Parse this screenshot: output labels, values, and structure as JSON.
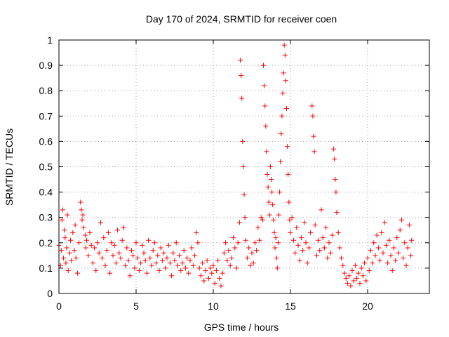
{
  "chart_data": {
    "type": "scatter",
    "title": "Day 170 of 2024, SRMTID for receiver coen",
    "xlabel": "GPS time / hours",
    "ylabel": "SRMTID / TECUs",
    "xlim": [
      0,
      24
    ],
    "ylim": [
      0,
      1
    ],
    "xticks": [
      0,
      5,
      10,
      15,
      20
    ],
    "yticks": [
      0,
      0.1,
      0.2,
      0.3,
      0.4,
      0.5,
      0.6,
      0.7,
      0.8,
      0.9,
      1
    ],
    "xtick_labels": [
      "0",
      "5",
      "10",
      "15",
      "20"
    ],
    "ytick_labels": [
      "0",
      "0.1",
      "0.2",
      "0.3",
      "0.4",
      "0.5",
      "0.6",
      "0.7",
      "0.8",
      "0.9",
      "1"
    ],
    "grid": true,
    "marker": "+",
    "color": "#ff0000",
    "series": [
      {
        "name": "SRMTID",
        "points": [
          [
            0.0,
            0.19
          ],
          [
            0.1,
            0.11
          ],
          [
            0.15,
            0.17
          ],
          [
            0.2,
            0.29
          ],
          [
            0.25,
            0.33
          ],
          [
            0.3,
            0.14
          ],
          [
            0.35,
            0.25
          ],
          [
            0.4,
            0.22
          ],
          [
            0.45,
            0.12
          ],
          [
            0.5,
            0.18
          ],
          [
            0.55,
            0.31
          ],
          [
            0.6,
            0.09
          ],
          [
            0.7,
            0.16
          ],
          [
            0.75,
            0.21
          ],
          [
            0.8,
            0.13
          ],
          [
            0.9,
            0.24
          ],
          [
            1.0,
            0.17
          ],
          [
            1.05,
            0.27
          ],
          [
            1.1,
            0.14
          ],
          [
            1.2,
            0.08
          ],
          [
            1.3,
            0.2
          ],
          [
            1.4,
            0.36
          ],
          [
            1.45,
            0.33
          ],
          [
            1.5,
            0.29
          ],
          [
            1.55,
            0.31
          ],
          [
            1.6,
            0.26
          ],
          [
            1.7,
            0.23
          ],
          [
            1.75,
            0.18
          ],
          [
            1.8,
            0.21
          ],
          [
            1.9,
            0.15
          ],
          [
            2.0,
            0.24
          ],
          [
            2.1,
            0.19
          ],
          [
            2.2,
            0.12
          ],
          [
            2.3,
            0.18
          ],
          [
            2.4,
            0.09
          ],
          [
            2.5,
            0.2
          ],
          [
            2.6,
            0.16
          ],
          [
            2.7,
            0.28
          ],
          [
            2.8,
            0.14
          ],
          [
            2.9,
            0.22
          ],
          [
            3.0,
            0.11
          ],
          [
            3.1,
            0.17
          ],
          [
            3.2,
            0.24
          ],
          [
            3.3,
            0.08
          ],
          [
            3.4,
            0.2
          ],
          [
            3.5,
            0.15
          ],
          [
            3.6,
            0.19
          ],
          [
            3.7,
            0.12
          ],
          [
            3.8,
            0.25
          ],
          [
            3.9,
            0.16
          ],
          [
            4.0,
            0.14
          ],
          [
            4.1,
            0.21
          ],
          [
            4.2,
            0.26
          ],
          [
            4.3,
            0.11
          ],
          [
            4.4,
            0.18
          ],
          [
            4.5,
            0.13
          ],
          [
            4.6,
            0.07
          ],
          [
            4.7,
            0.17
          ],
          [
            4.8,
            0.15
          ],
          [
            4.9,
            0.1
          ],
          [
            5.0,
            0.2
          ],
          [
            5.1,
            0.14
          ],
          [
            5.2,
            0.09
          ],
          [
            5.3,
            0.12
          ],
          [
            5.4,
            0.19
          ],
          [
            5.5,
            0.16
          ],
          [
            5.6,
            0.13
          ],
          [
            5.7,
            0.08
          ],
          [
            5.8,
            0.21
          ],
          [
            5.9,
            0.14
          ],
          [
            6.0,
            0.11
          ],
          [
            6.1,
            0.17
          ],
          [
            6.2,
            0.2
          ],
          [
            6.3,
            0.12
          ],
          [
            6.4,
            0.15
          ],
          [
            6.5,
            0.09
          ],
          [
            6.6,
            0.18
          ],
          [
            6.7,
            0.13
          ],
          [
            6.8,
            0.16
          ],
          [
            6.9,
            0.1
          ],
          [
            7.0,
            0.14
          ],
          [
            7.1,
            0.19
          ],
          [
            7.2,
            0.12
          ],
          [
            7.3,
            0.07
          ],
          [
            7.4,
            0.16
          ],
          [
            7.5,
            0.13
          ],
          [
            7.6,
            0.2
          ],
          [
            7.7,
            0.11
          ],
          [
            7.8,
            0.15
          ],
          [
            7.9,
            0.09
          ],
          [
            8.0,
            0.12
          ],
          [
            8.1,
            0.17
          ],
          [
            8.2,
            0.1
          ],
          [
            8.3,
            0.14
          ],
          [
            8.4,
            0.08
          ],
          [
            8.5,
            0.13
          ],
          [
            8.6,
            0.18
          ],
          [
            8.7,
            0.11
          ],
          [
            8.8,
            0.15
          ],
          [
            8.9,
            0.24
          ],
          [
            9.0,
            0.2
          ],
          [
            9.1,
            0.1
          ],
          [
            9.2,
            0.07
          ],
          [
            9.3,
            0.12
          ],
          [
            9.4,
            0.05
          ],
          [
            9.5,
            0.09
          ],
          [
            9.6,
            0.13
          ],
          [
            9.7,
            0.06
          ],
          [
            9.8,
            0.1
          ],
          [
            9.9,
            0.08
          ],
          [
            10.0,
            0.11
          ],
          [
            10.1,
            0.04
          ],
          [
            10.2,
            0.09
          ],
          [
            10.3,
            0.13
          ],
          [
            10.4,
            0.06
          ],
          [
            10.5,
            0.03
          ],
          [
            10.6,
            0.08
          ],
          [
            10.7,
            0.16
          ],
          [
            10.8,
            0.2
          ],
          [
            10.9,
            0.13
          ],
          [
            11.0,
            0.17
          ],
          [
            11.1,
            0.11
          ],
          [
            11.2,
            0.14
          ],
          [
            11.3,
            0.22
          ],
          [
            11.4,
            0.18
          ],
          [
            11.5,
            0.1
          ],
          [
            11.6,
            0.2
          ],
          [
            11.7,
            0.28
          ],
          [
            11.75,
            0.92
          ],
          [
            11.8,
            0.86
          ],
          [
            11.85,
            0.77
          ],
          [
            11.9,
            0.6
          ],
          [
            11.95,
            0.5
          ],
          [
            12.0,
            0.39
          ],
          [
            12.05,
            0.3
          ],
          [
            12.1,
            0.21
          ],
          [
            12.2,
            0.14
          ],
          [
            12.3,
            0.18
          ],
          [
            12.4,
            0.11
          ],
          [
            12.5,
            0.16
          ],
          [
            12.6,
            0.12
          ],
          [
            12.7,
            0.2
          ],
          [
            12.8,
            0.17
          ],
          [
            12.9,
            0.26
          ],
          [
            13.0,
            0.21
          ],
          [
            13.1,
            0.3
          ],
          [
            13.2,
            0.29
          ],
          [
            13.25,
            0.9
          ],
          [
            13.3,
            0.82
          ],
          [
            13.35,
            0.74
          ],
          [
            13.4,
            0.66
          ],
          [
            13.45,
            0.56
          ],
          [
            13.5,
            0.47
          ],
          [
            13.55,
            0.42
          ],
          [
            13.6,
            0.36
          ],
          [
            13.65,
            0.31
          ],
          [
            13.7,
            0.5
          ],
          [
            13.75,
            0.45
          ],
          [
            13.8,
            0.4
          ],
          [
            13.85,
            0.35
          ],
          [
            13.9,
            0.29
          ],
          [
            13.95,
            0.24
          ],
          [
            14.0,
            0.18
          ],
          [
            14.05,
            0.22
          ],
          [
            14.1,
            0.14
          ],
          [
            14.15,
            0.1
          ],
          [
            14.2,
            0.2
          ],
          [
            14.25,
            0.31
          ],
          [
            14.3,
            0.4
          ],
          [
            14.35,
            0.52
          ],
          [
            14.4,
            0.63
          ],
          [
            14.45,
            0.7
          ],
          [
            14.5,
            0.79
          ],
          [
            14.55,
            0.87
          ],
          [
            14.6,
            0.98
          ],
          [
            14.65,
            0.94
          ],
          [
            14.7,
            0.84
          ],
          [
            14.75,
            0.73
          ],
          [
            14.8,
            0.58
          ],
          [
            14.85,
            0.47
          ],
          [
            14.9,
            0.36
          ],
          [
            14.95,
            0.29
          ],
          [
            15.0,
            0.24
          ],
          [
            15.1,
            0.3
          ],
          [
            15.2,
            0.21
          ],
          [
            15.3,
            0.16
          ],
          [
            15.4,
            0.26
          ],
          [
            15.5,
            0.19
          ],
          [
            15.6,
            0.13
          ],
          [
            15.7,
            0.22
          ],
          [
            15.8,
            0.17
          ],
          [
            15.9,
            0.28
          ],
          [
            16.0,
            0.2
          ],
          [
            16.1,
            0.12
          ],
          [
            16.2,
            0.18
          ],
          [
            16.3,
            0.24
          ],
          [
            16.4,
            0.74
          ],
          [
            16.45,
            0.7
          ],
          [
            16.5,
            0.62
          ],
          [
            16.55,
            0.56
          ],
          [
            16.6,
            0.27
          ],
          [
            16.7,
            0.15
          ],
          [
            16.8,
            0.21
          ],
          [
            16.9,
            0.17
          ],
          [
            17.0,
            0.33
          ],
          [
            17.1,
            0.22
          ],
          [
            17.2,
            0.18
          ],
          [
            17.3,
            0.26
          ],
          [
            17.4,
            0.14
          ],
          [
            17.5,
            0.2
          ],
          [
            17.6,
            0.16
          ],
          [
            17.7,
            0.23
          ],
          [
            17.8,
            0.57
          ],
          [
            17.85,
            0.53
          ],
          [
            17.9,
            0.45
          ],
          [
            17.95,
            0.4
          ],
          [
            18.0,
            0.32
          ],
          [
            18.1,
            0.24
          ],
          [
            18.2,
            0.18
          ],
          [
            18.3,
            0.14
          ],
          [
            18.4,
            0.11
          ],
          [
            18.5,
            0.08
          ],
          [
            18.6,
            0.06
          ],
          [
            18.7,
            0.04
          ],
          [
            18.8,
            0.07
          ],
          [
            18.9,
            0.03
          ],
          [
            19.0,
            0.09
          ],
          [
            19.1,
            0.05
          ],
          [
            19.2,
            0.11
          ],
          [
            19.3,
            0.06
          ],
          [
            19.4,
            0.08
          ],
          [
            19.5,
            0.04
          ],
          [
            19.6,
            0.1
          ],
          [
            19.7,
            0.07
          ],
          [
            19.8,
            0.12
          ],
          [
            19.9,
            0.05
          ],
          [
            20.0,
            0.14
          ],
          [
            20.1,
            0.09
          ],
          [
            20.2,
            0.17
          ],
          [
            20.3,
            0.12
          ],
          [
            20.4,
            0.2
          ],
          [
            20.5,
            0.15
          ],
          [
            20.6,
            0.23
          ],
          [
            20.7,
            0.18
          ],
          [
            20.8,
            0.13
          ],
          [
            20.9,
            0.24
          ],
          [
            21.0,
            0.16
          ],
          [
            21.1,
            0.28
          ],
          [
            21.2,
            0.19
          ],
          [
            21.3,
            0.12
          ],
          [
            21.4,
            0.21
          ],
          [
            21.5,
            0.15
          ],
          [
            21.6,
            0.09
          ],
          [
            21.7,
            0.18
          ],
          [
            21.8,
            0.13
          ],
          [
            21.9,
            0.22
          ],
          [
            22.0,
            0.16
          ],
          [
            22.1,
            0.25
          ],
          [
            22.2,
            0.29
          ],
          [
            22.3,
            0.14
          ],
          [
            22.4,
            0.2
          ],
          [
            22.5,
            0.11
          ],
          [
            22.6,
            0.18
          ],
          [
            22.7,
            0.27
          ],
          [
            22.8,
            0.15
          ],
          [
            22.85,
            0.21
          ]
        ]
      }
    ]
  }
}
